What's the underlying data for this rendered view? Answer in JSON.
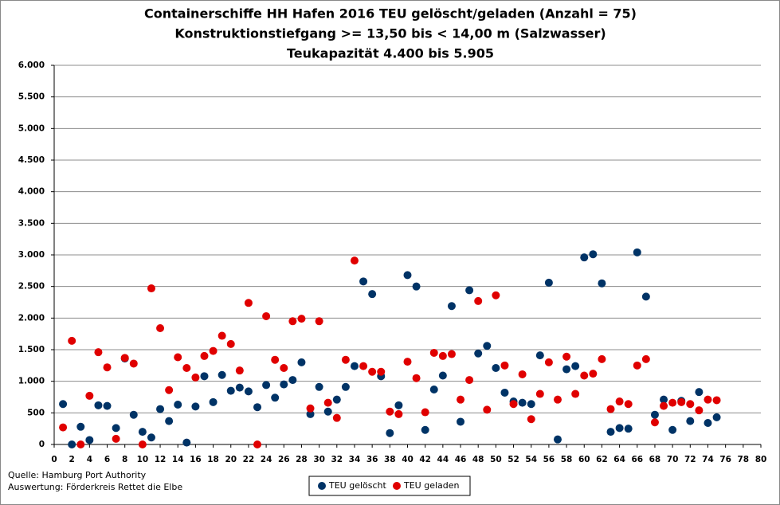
{
  "chart_data": {
    "type": "scatter",
    "title": [
      "Containerschiffe HH Hafen 2016 TEU gelöscht/geladen (Anzahl = 75)",
      "Konstruktionstiefgang  >= 13,50 bis < 14,00 m (Salzwasser)",
      "Teukapazität  4.400 bis 5.905"
    ],
    "notes": [
      "Quelle: Hamburg Port Authority",
      "Auswertung: Förderkreis Rettet die Elbe"
    ],
    "x": [
      1,
      2,
      3,
      4,
      5,
      6,
      7,
      8,
      9,
      10,
      11,
      12,
      13,
      14,
      15,
      16,
      17,
      18,
      19,
      20,
      21,
      22,
      23,
      24,
      25,
      26,
      27,
      28,
      29,
      30,
      31,
      32,
      33,
      34,
      35,
      36,
      37,
      38,
      39,
      40,
      41,
      42,
      43,
      44,
      45,
      46,
      47,
      48,
      49,
      50,
      51,
      52,
      53,
      54,
      55,
      56,
      57,
      58,
      59,
      60,
      61,
      62,
      63,
      64,
      65,
      66,
      67,
      68,
      69,
      70,
      71,
      72,
      73,
      74,
      75
    ],
    "series": [
      {
        "name": "TEU gelöscht",
        "color": "#003366",
        "values": [
          640,
          0,
          280,
          70,
          620,
          610,
          260,
          1360,
          470,
          200,
          110,
          560,
          370,
          630,
          30,
          600,
          1080,
          670,
          1100,
          850,
          900,
          840,
          590,
          940,
          740,
          950,
          1020,
          1300,
          480,
          910,
          520,
          710,
          910,
          1240,
          2580,
          2380,
          1080,
          180,
          620,
          2680,
          2500,
          230,
          870,
          1090,
          2190,
          360,
          2440,
          1440,
          1560,
          1210,
          820,
          680,
          660,
          640,
          1410,
          2560,
          80,
          1190,
          1240,
          2960,
          3010,
          2550,
          200,
          260,
          250,
          3040,
          2340,
          470,
          710,
          230,
          690,
          370,
          830,
          340,
          430
        ]
      },
      {
        "name": "TEU geladen",
        "color": "#e00000",
        "values": [
          270,
          1640,
          0,
          770,
          1460,
          1220,
          90,
          1370,
          1280,
          0,
          2470,
          1840,
          860,
          1380,
          1210,
          1060,
          1400,
          1480,
          1720,
          1590,
          1170,
          2240,
          0,
          2030,
          1340,
          1210,
          1950,
          1990,
          570,
          1950,
          660,
          420,
          1340,
          2910,
          1240,
          1150,
          1150,
          520,
          480,
          1310,
          1050,
          510,
          1450,
          1400,
          1430,
          710,
          1020,
          2270,
          550,
          2360,
          1250,
          640,
          1110,
          400,
          800,
          1300,
          710,
          1390,
          800,
          1090,
          1120,
          1350,
          560,
          680,
          640,
          1250,
          1350,
          350,
          610,
          660,
          670,
          640,
          540,
          710,
          700
        ]
      }
    ],
    "xlim": [
      0,
      80
    ],
    "xticks": [
      0,
      2,
      4,
      6,
      8,
      10,
      12,
      14,
      16,
      18,
      20,
      22,
      24,
      26,
      28,
      30,
      32,
      34,
      36,
      38,
      40,
      42,
      44,
      46,
      48,
      50,
      52,
      54,
      56,
      58,
      60,
      62,
      64,
      66,
      68,
      70,
      72,
      74,
      76,
      78,
      80
    ],
    "ylim": [
      0,
      6000
    ],
    "yticks": [
      {
        "value": 0,
        "label": "0"
      },
      {
        "value": 500,
        "label": "500"
      },
      {
        "value": 1000,
        "label": "1.000"
      },
      {
        "value": 1500,
        "label": "1.500"
      },
      {
        "value": 2000,
        "label": "2.000"
      },
      {
        "value": 2500,
        "label": "2.500"
      },
      {
        "value": 3000,
        "label": "3.000"
      },
      {
        "value": 3500,
        "label": "3.500"
      },
      {
        "value": 4000,
        "label": "4.000"
      },
      {
        "value": 4500,
        "label": "4.500"
      },
      {
        "value": 5000,
        "label": "5.000"
      },
      {
        "value": 5500,
        "label": "5.500"
      },
      {
        "value": 6000,
        "label": "6.000"
      }
    ],
    "grid": true,
    "legend": "bottom"
  }
}
